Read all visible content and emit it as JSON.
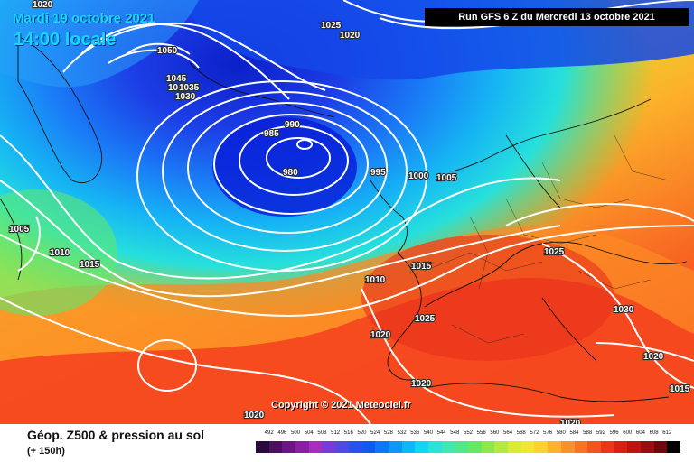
{
  "header": {
    "date": "Mardi 19 octobre 2021",
    "time": "14:00 locale",
    "run": "Run GFS 6 Z du Mercredi 13 octobre 2021"
  },
  "copyright": "Copyright © 2021 Meteociel.fr",
  "footer": {
    "title": "Géop. Z500 & pression au sol",
    "subtitle": "(+ 150h)"
  },
  "isobar_labels": [
    "1020",
    "1050",
    "1045",
    "1040",
    "1035",
    "1030",
    "1025",
    "1020",
    "990",
    "985",
    "980",
    "995",
    "1000",
    "1005",
    "1005",
    "1010",
    "1015",
    "1010",
    "1015",
    "1025",
    "1020",
    "1025",
    "1030",
    "1020",
    "1015",
    "1020",
    "1020",
    "1020"
  ],
  "legend": {
    "ticks": [
      "492",
      "496",
      "500",
      "504",
      "508",
      "512",
      "516",
      "520",
      "524",
      "528",
      "532",
      "536",
      "540",
      "544",
      "548",
      "552",
      "556",
      "560",
      "564",
      "568",
      "572",
      "576",
      "580",
      "584",
      "588",
      "592",
      "596",
      "600",
      "604",
      "608",
      "612"
    ],
    "colors": [
      "#2a0a3a",
      "#4b0f5e",
      "#6a1683",
      "#8b1fa3",
      "#a82cc0",
      "#7a3ad8",
      "#4e4ae6",
      "#2a50f0",
      "#0f5af5",
      "#0a78f8",
      "#0a98fa",
      "#0cb8f8",
      "#10d6f2",
      "#28e4d8",
      "#3ee8b2",
      "#4fe88a",
      "#66e864",
      "#8ee84a",
      "#b4ea3e",
      "#d8ec34",
      "#f2e632",
      "#fcd22e",
      "#fcb22a",
      "#fc9226",
      "#fa7222",
      "#f6521e",
      "#ec361a",
      "#d82016",
      "#c01212",
      "#9a0c10",
      "#6e080c",
      "#000000"
    ]
  },
  "colors": {
    "map_blue": "#1c3ee6",
    "map_red": "#f6401e",
    "accent": "#18d7ff"
  }
}
